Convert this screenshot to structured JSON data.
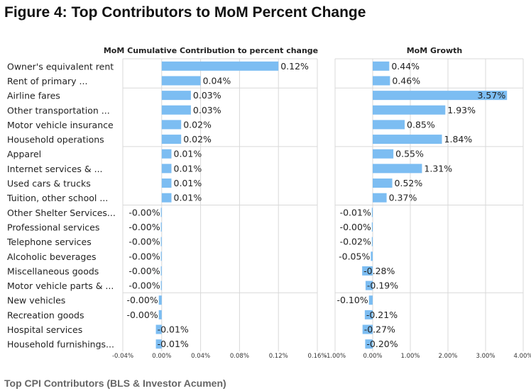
{
  "figure_title": "Figure 4: Top Contributors to MoM Percent Change",
  "source_caption": "Top CPI Contributors (BLS & Investor Acumen)",
  "colors": {
    "bar": "#7cbdf2",
    "grid": "#d9d9d9",
    "text": "#222222"
  },
  "chart_data": [
    {
      "type": "bar",
      "orientation": "horizontal",
      "title": "MoM Cumulative Contribution to percent change",
      "categories": [
        "Owner's equivalent rent",
        "Rent of primary ...",
        "Airline fares",
        "Other transportation ...",
        "Motor vehicle insurance",
        "Household operations",
        "Apparel",
        "Internet services & ...",
        "Used cars & trucks",
        "Tuition, other school ...",
        "Other Shelter Services...",
        "Professional services",
        "Telephone services",
        "Alcoholic beverages",
        "Miscellaneous goods",
        "Motor vehicle parts & ...",
        "New vehicles",
        "Recreation goods",
        "Hospital services",
        "Household furnishings..."
      ],
      "values": [
        0.12,
        0.04,
        0.03,
        0.03,
        0.02,
        0.02,
        0.01,
        0.01,
        0.01,
        0.01,
        -0.0005,
        -0.0005,
        -0.0005,
        -0.0005,
        -0.0005,
        -0.0005,
        -0.003,
        -0.003,
        -0.006,
        -0.006
      ],
      "data_labels": [
        "0.12%",
        "0.04%",
        "0.03%",
        "0.03%",
        "0.02%",
        "0.02%",
        "0.01%",
        "0.01%",
        "0.01%",
        "0.01%",
        "-0.00%",
        "-0.00%",
        "-0.00%",
        "-0.00%",
        "-0.00%",
        "-0.00%",
        "-0.00%",
        "-0.00%",
        "-0.01%",
        "-0.01%"
      ],
      "xlim": [
        -0.04,
        0.16
      ],
      "xticks": [
        -0.04,
        0,
        0.04,
        0.08,
        0.12,
        0.16
      ],
      "xtick_labels": [
        "-0.04%",
        "0.00%",
        "0.04%",
        "0.08%",
        "0.12%",
        "0.16%"
      ],
      "grid": true
    },
    {
      "type": "bar",
      "orientation": "horizontal",
      "title": "MoM Growth",
      "values": [
        0.44,
        0.46,
        3.57,
        1.93,
        0.85,
        1.84,
        0.55,
        1.31,
        0.52,
        0.37,
        -0.01,
        -0.004,
        -0.02,
        -0.05,
        -0.28,
        -0.19,
        -0.1,
        -0.21,
        -0.27,
        -0.2
      ],
      "data_labels": [
        "0.44%",
        "0.46%",
        "3.57%",
        "1.93%",
        "0.85%",
        "1.84%",
        "0.55%",
        "1.31%",
        "0.52%",
        "0.37%",
        "-0.01%",
        "-0.00%",
        "-0.02%",
        "-0.05%",
        "-0.28%",
        "-0.19%",
        "-0.10%",
        "-0.21%",
        "-0.27%",
        "-0.20%"
      ],
      "xlim": [
        -1,
        4
      ],
      "xticks": [
        -1,
        0,
        1,
        2,
        3,
        4
      ],
      "xtick_labels": [
        "-1.00%",
        "0.00%",
        "1.00%",
        "2.00%",
        "3.00%",
        "4.00%"
      ],
      "grid": true
    }
  ]
}
